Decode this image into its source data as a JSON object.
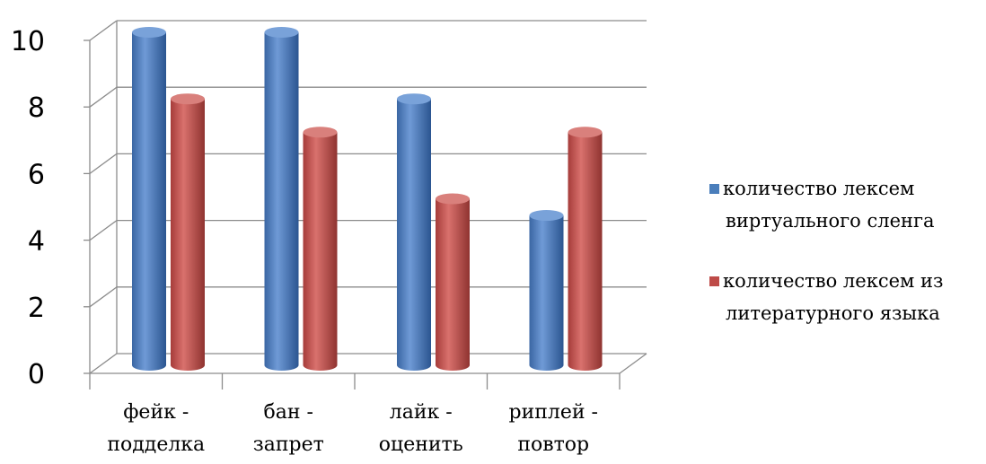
{
  "chart_data": {
    "type": "bar",
    "categories": [
      [
        "фейк -",
        "подделка"
      ],
      [
        "бан -",
        "запрет"
      ],
      [
        "лайк -",
        "оценить"
      ],
      [
        "риплей -",
        "повтор"
      ]
    ],
    "series": [
      {
        "name": [
          "количество лексем",
          "виртуального сленга"
        ],
        "color": "#4a7ebb",
        "values": [
          10,
          10,
          8,
          4.5
        ]
      },
      {
        "name": [
          "количество лексем из",
          "литературного языка"
        ],
        "color": "#be4b48",
        "values": [
          8,
          7,
          5,
          7
        ]
      }
    ],
    "yticks": [
      "0",
      "2",
      "4",
      "6",
      "8",
      "10"
    ],
    "ylim": [
      0,
      10
    ],
    "grid": true,
    "legend": "right"
  }
}
